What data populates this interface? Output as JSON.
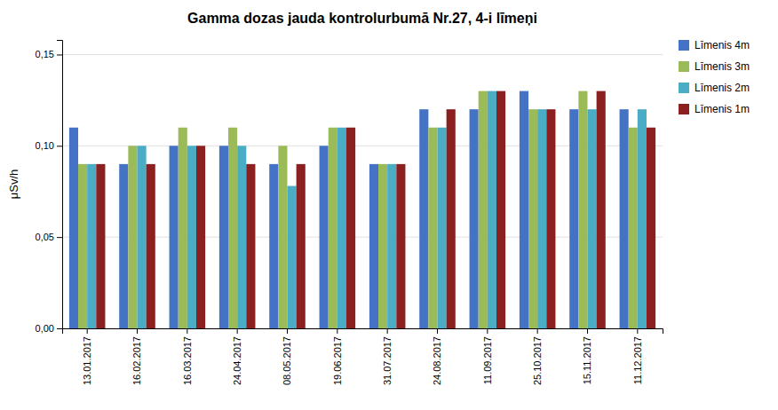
{
  "chart_data": {
    "type": "bar",
    "title": "Gamma dozas jauda kontrolurbumā Nr.27, 4-i līmeņi",
    "ylabel": "μSv/h",
    "categories": [
      "13.01.2017",
      "16.02.2017",
      "16.03.2017",
      "24.04.2017",
      "08.05.2017",
      "19.06.2017",
      "31.07.2017",
      "24.08.2017",
      "11.09.2017",
      "25.10.2017",
      "15.11.2017",
      "11.12.2017"
    ],
    "series": [
      {
        "name": "Līmenis 4m",
        "color": "#4472C4",
        "values": [
          0.11,
          0.09,
          0.1,
          0.1,
          0.09,
          0.1,
          0.09,
          0.12,
          0.12,
          0.13,
          0.12,
          0.12
        ]
      },
      {
        "name": "Līmenis 3m",
        "color": "#9BBB59",
        "values": [
          0.09,
          0.1,
          0.11,
          0.11,
          0.1,
          0.11,
          0.09,
          0.11,
          0.13,
          0.12,
          0.13,
          0.11
        ]
      },
      {
        "name": "Līmenis 2m",
        "color": "#4BACC6",
        "values": [
          0.09,
          0.1,
          0.1,
          0.1,
          0.078,
          0.11,
          0.09,
          0.11,
          0.13,
          0.12,
          0.12,
          0.12
        ]
      },
      {
        "name": "Līmenis 1m",
        "color": "#8B2020",
        "values": [
          0.09,
          0.09,
          0.1,
          0.09,
          0.09,
          0.11,
          0.09,
          0.12,
          0.13,
          0.12,
          0.13,
          0.11
        ]
      }
    ],
    "ylim": [
      0,
      0.158
    ],
    "yticks": [
      {
        "value": 0.0,
        "label": "0,00"
      },
      {
        "value": 0.05,
        "label": "0,05"
      },
      {
        "value": 0.1,
        "label": "0,10"
      },
      {
        "value": 0.15,
        "label": "0,15"
      }
    ],
    "grid": true,
    "legend": "right"
  }
}
